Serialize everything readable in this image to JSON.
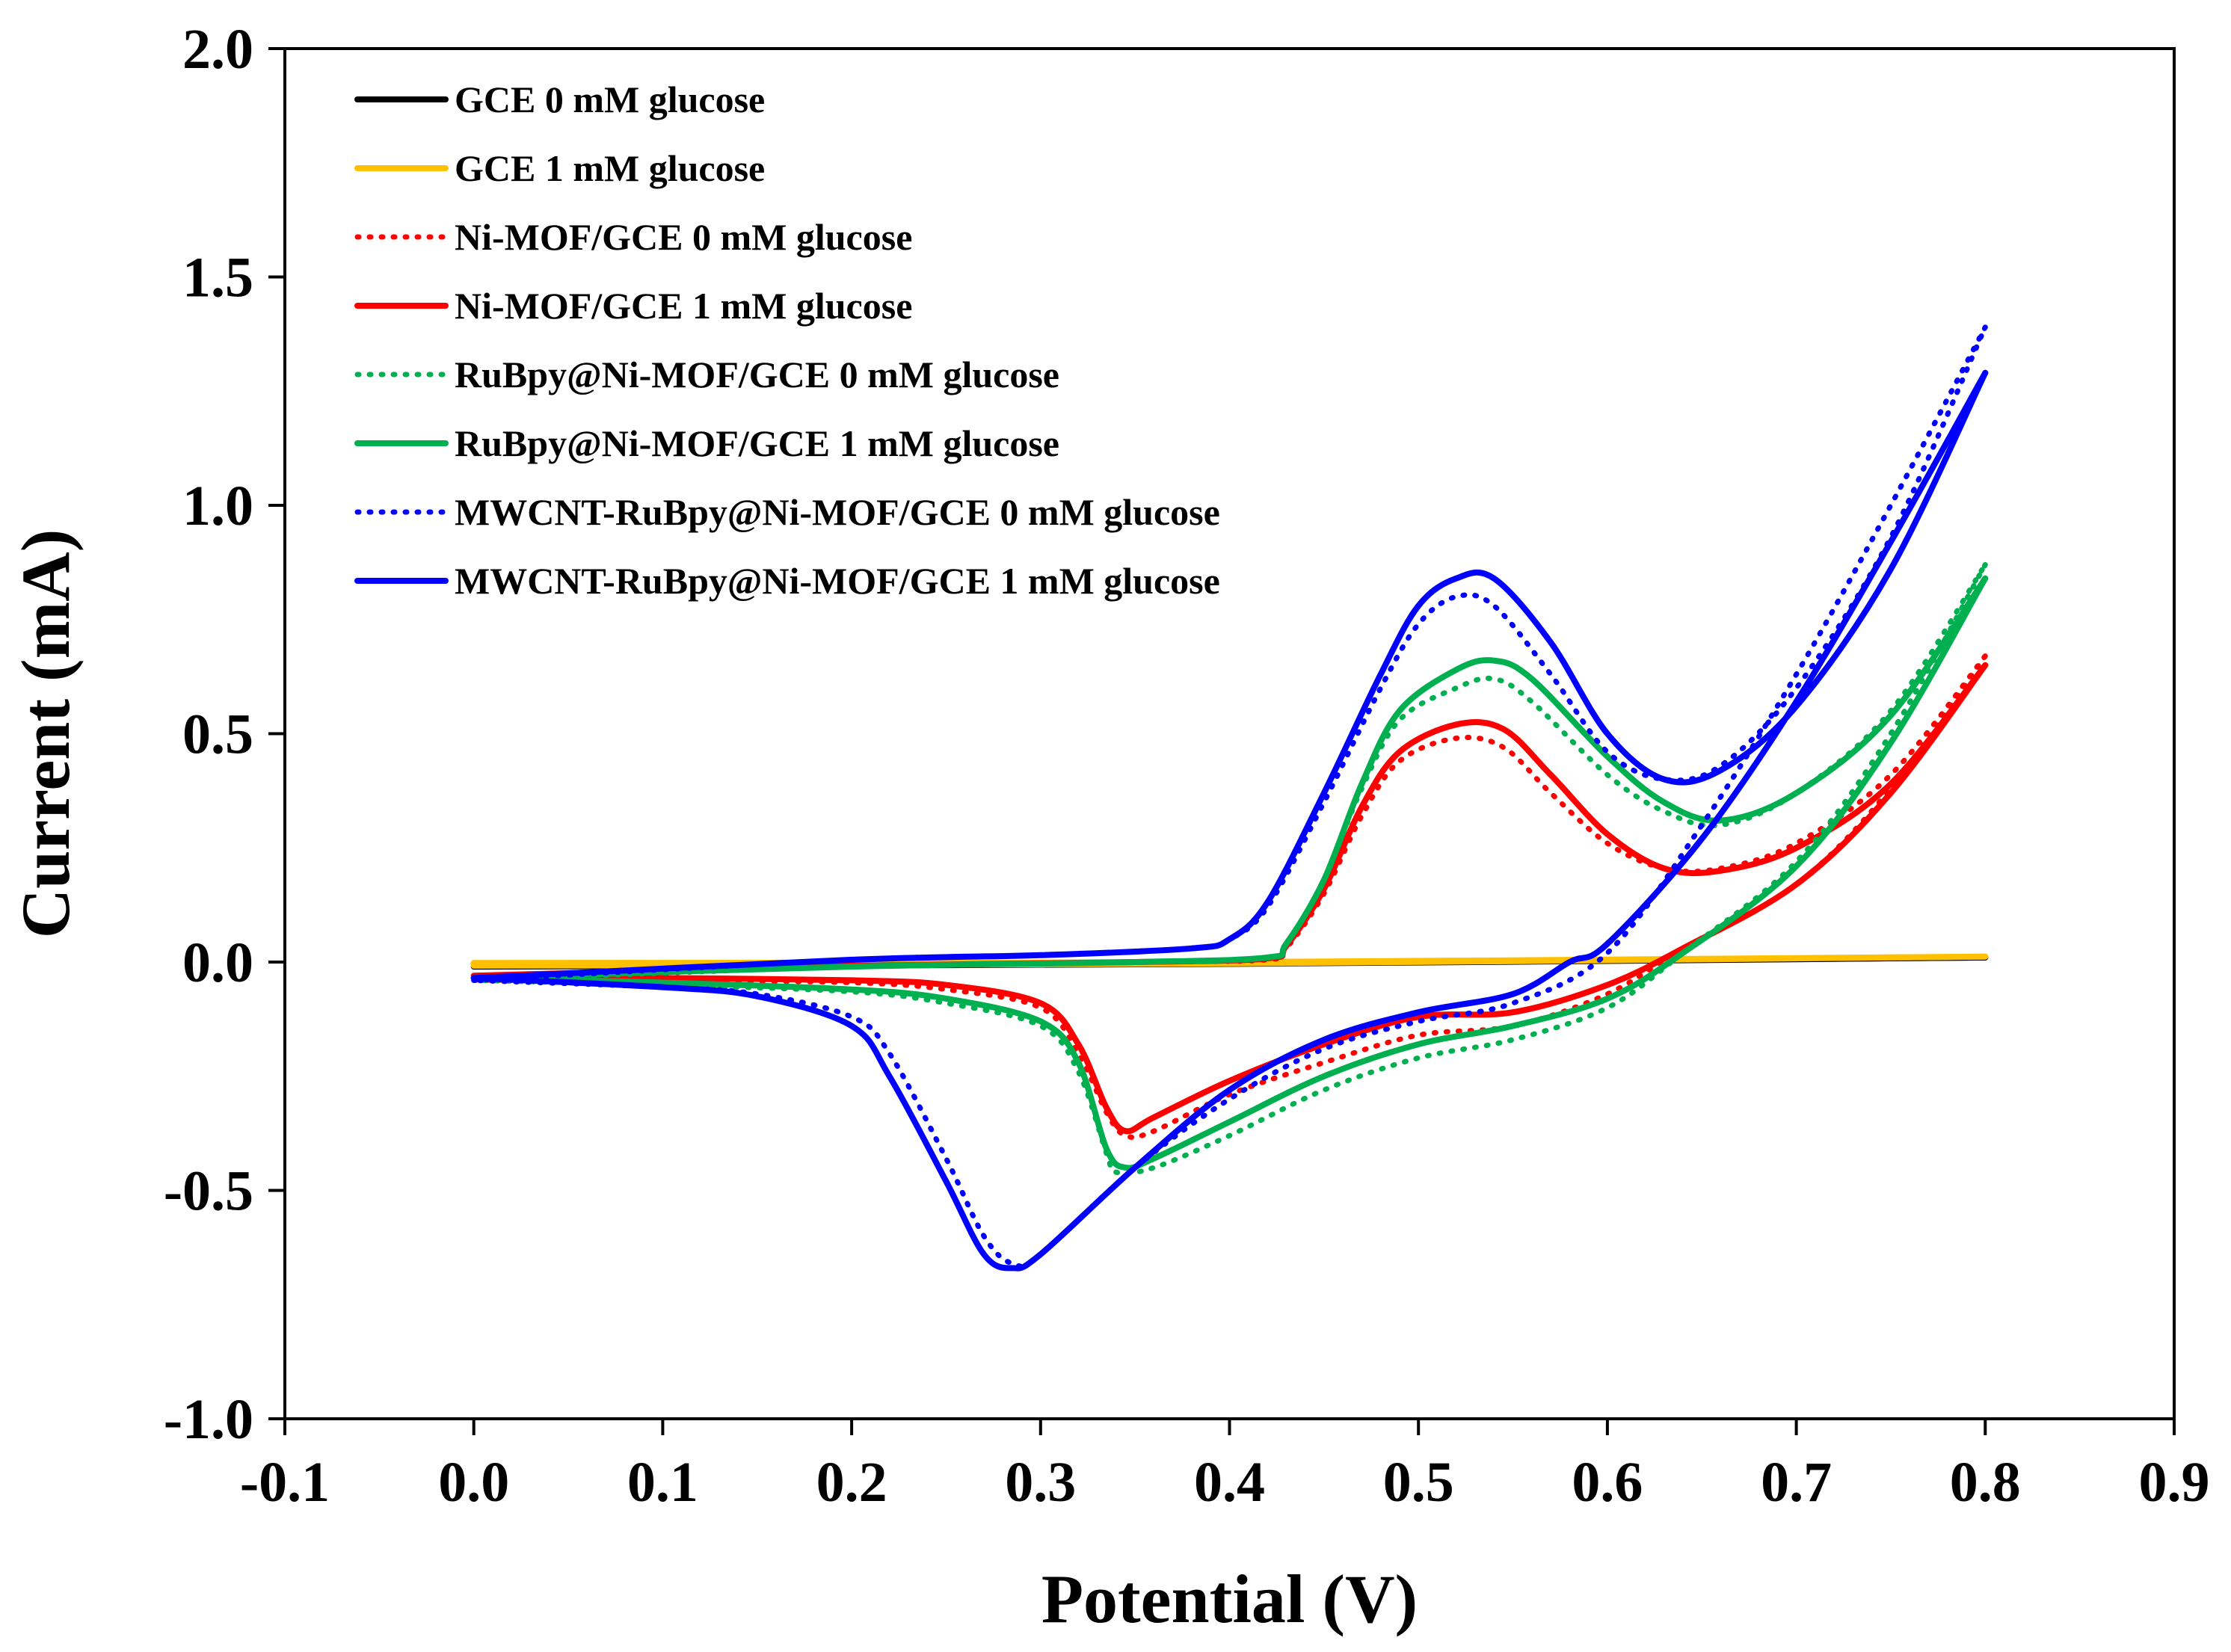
{
  "chart_data": {
    "type": "line",
    "title": "",
    "xlabel": "Potential (V)",
    "ylabel": "Current (mA)",
    "xlim": [
      -0.1,
      0.9
    ],
    "ylim": [
      -1.0,
      2.0
    ],
    "xticks": [
      "-0.1",
      "0.0",
      "0.1",
      "0.2",
      "0.3",
      "0.4",
      "0.5",
      "0.6",
      "0.7",
      "0.8",
      "0.9"
    ],
    "yticks": [
      "-1.0",
      "-0.5",
      "0.0",
      "0.5",
      "1.0",
      "1.5",
      "2.0"
    ],
    "grid": false,
    "legend_position": "top-left",
    "series": [
      {
        "name": "GCE 0 mM glucose",
        "color": "#000000",
        "style": "solid",
        "forward": [
          [
            0.0,
            -0.01
          ],
          [
            0.4,
            -0.004
          ],
          [
            0.8,
            0.01
          ]
        ],
        "reverse": [
          [
            0.8,
            0.01
          ],
          [
            0.4,
            -0.002
          ],
          [
            0.0,
            -0.003
          ]
        ]
      },
      {
        "name": "GCE 1 mM glucose",
        "color": "#ffc000",
        "style": "solid",
        "forward": [
          [
            0.0,
            -0.008
          ],
          [
            0.4,
            -0.003
          ],
          [
            0.8,
            0.012
          ]
        ],
        "reverse": [
          [
            0.8,
            0.012
          ],
          [
            0.4,
            0.0
          ],
          [
            0.0,
            -0.002
          ]
        ]
      },
      {
        "name": "Ni-MOF/GCE 0 mM glucose",
        "color": "#ff0000",
        "style": "dotted",
        "forward": [
          [
            0.0,
            -0.035
          ],
          [
            0.2,
            -0.01
          ],
          [
            0.35,
            0.0
          ],
          [
            0.42,
            0.005
          ],
          [
            0.43,
            0.03
          ],
          [
            0.45,
            0.15
          ],
          [
            0.47,
            0.32
          ],
          [
            0.49,
            0.44
          ],
          [
            0.52,
            0.49
          ],
          [
            0.545,
            0.47
          ],
          [
            0.57,
            0.37
          ],
          [
            0.6,
            0.26
          ],
          [
            0.63,
            0.205
          ],
          [
            0.66,
            0.205
          ],
          [
            0.7,
            0.26
          ],
          [
            0.75,
            0.41
          ],
          [
            0.8,
            0.67
          ]
        ],
        "reverse": [
          [
            0.8,
            0.67
          ],
          [
            0.75,
            0.38
          ],
          [
            0.7,
            0.17
          ],
          [
            0.64,
            0.03
          ],
          [
            0.6,
            -0.07
          ],
          [
            0.55,
            -0.14
          ],
          [
            0.5,
            -0.16
          ],
          [
            0.45,
            -0.22
          ],
          [
            0.4,
            -0.29
          ],
          [
            0.36,
            -0.37
          ],
          [
            0.345,
            -0.38
          ],
          [
            0.335,
            -0.33
          ],
          [
            0.32,
            -0.2
          ],
          [
            0.3,
            -0.1
          ],
          [
            0.25,
            -0.06
          ],
          [
            0.2,
            -0.045
          ],
          [
            0.1,
            -0.04
          ],
          [
            0.0,
            -0.04
          ]
        ]
      },
      {
        "name": "Ni-MOF/GCE 1 mM glucose",
        "color": "#ff0000",
        "style": "solid",
        "forward": [
          [
            0.0,
            -0.03
          ],
          [
            0.2,
            -0.008
          ],
          [
            0.35,
            0.0
          ],
          [
            0.42,
            0.008
          ],
          [
            0.43,
            0.035
          ],
          [
            0.45,
            0.16
          ],
          [
            0.47,
            0.34
          ],
          [
            0.49,
            0.46
          ],
          [
            0.52,
            0.52
          ],
          [
            0.545,
            0.51
          ],
          [
            0.57,
            0.41
          ],
          [
            0.6,
            0.28
          ],
          [
            0.63,
            0.205
          ],
          [
            0.66,
            0.2
          ],
          [
            0.7,
            0.25
          ],
          [
            0.75,
            0.39
          ],
          [
            0.8,
            0.65
          ]
        ],
        "reverse": [
          [
            0.8,
            0.65
          ],
          [
            0.75,
            0.37
          ],
          [
            0.7,
            0.17
          ],
          [
            0.64,
            0.03
          ],
          [
            0.6,
            -0.05
          ],
          [
            0.55,
            -0.11
          ],
          [
            0.5,
            -0.12
          ],
          [
            0.45,
            -0.18
          ],
          [
            0.4,
            -0.26
          ],
          [
            0.36,
            -0.34
          ],
          [
            0.345,
            -0.37
          ],
          [
            0.335,
            -0.32
          ],
          [
            0.32,
            -0.18
          ],
          [
            0.3,
            -0.09
          ],
          [
            0.25,
            -0.05
          ],
          [
            0.2,
            -0.04
          ],
          [
            0.1,
            -0.035
          ],
          [
            0.0,
            -0.035
          ]
        ]
      },
      {
        "name": "RuBpy@Ni-MOF/GCE 0 mM glucose",
        "color": "#00b050",
        "style": "dotted",
        "forward": [
          [
            0.0,
            -0.04
          ],
          [
            0.2,
            -0.01
          ],
          [
            0.35,
            0.0
          ],
          [
            0.42,
            0.01
          ],
          [
            0.43,
            0.04
          ],
          [
            0.45,
            0.18
          ],
          [
            0.47,
            0.38
          ],
          [
            0.49,
            0.53
          ],
          [
            0.52,
            0.6
          ],
          [
            0.54,
            0.62
          ],
          [
            0.56,
            0.57
          ],
          [
            0.6,
            0.41
          ],
          [
            0.63,
            0.33
          ],
          [
            0.66,
            0.3
          ],
          [
            0.7,
            0.37
          ],
          [
            0.75,
            0.55
          ],
          [
            0.8,
            0.87
          ]
        ],
        "reverse": [
          [
            0.8,
            0.87
          ],
          [
            0.75,
            0.5
          ],
          [
            0.7,
            0.22
          ],
          [
            0.64,
            0.02
          ],
          [
            0.6,
            -0.1
          ],
          [
            0.55,
            -0.17
          ],
          [
            0.5,
            -0.21
          ],
          [
            0.45,
            -0.28
          ],
          [
            0.4,
            -0.38
          ],
          [
            0.36,
            -0.45
          ],
          [
            0.34,
            -0.46
          ],
          [
            0.335,
            -0.42
          ],
          [
            0.32,
            -0.24
          ],
          [
            0.3,
            -0.14
          ],
          [
            0.25,
            -0.09
          ],
          [
            0.2,
            -0.065
          ],
          [
            0.1,
            -0.05
          ],
          [
            0.0,
            -0.04
          ]
        ]
      },
      {
        "name": "RuBpy@Ni-MOF/GCE 1 mM glucose",
        "color": "#00b050",
        "style": "solid",
        "forward": [
          [
            0.0,
            -0.035
          ],
          [
            0.2,
            -0.01
          ],
          [
            0.35,
            0.0
          ],
          [
            0.42,
            0.01
          ],
          [
            0.43,
            0.04
          ],
          [
            0.45,
            0.18
          ],
          [
            0.47,
            0.39
          ],
          [
            0.49,
            0.55
          ],
          [
            0.52,
            0.64
          ],
          [
            0.54,
            0.66
          ],
          [
            0.56,
            0.62
          ],
          [
            0.6,
            0.45
          ],
          [
            0.63,
            0.35
          ],
          [
            0.66,
            0.31
          ],
          [
            0.7,
            0.37
          ],
          [
            0.75,
            0.54
          ],
          [
            0.8,
            0.84
          ]
        ],
        "reverse": [
          [
            0.8,
            0.84
          ],
          [
            0.75,
            0.48
          ],
          [
            0.7,
            0.21
          ],
          [
            0.64,
            0.02
          ],
          [
            0.6,
            -0.08
          ],
          [
            0.55,
            -0.14
          ],
          [
            0.5,
            -0.18
          ],
          [
            0.45,
            -0.25
          ],
          [
            0.4,
            -0.35
          ],
          [
            0.36,
            -0.43
          ],
          [
            0.345,
            -0.45
          ],
          [
            0.335,
            -0.41
          ],
          [
            0.32,
            -0.22
          ],
          [
            0.3,
            -0.13
          ],
          [
            0.25,
            -0.08
          ],
          [
            0.2,
            -0.06
          ],
          [
            0.1,
            -0.045
          ],
          [
            0.0,
            -0.035
          ]
        ]
      },
      {
        "name": "MWCNT-RuBpy@Ni-MOF/GCE 0 mM glucose",
        "color": "#0000ff",
        "style": "dotted",
        "forward": [
          [
            0.0,
            -0.04
          ],
          [
            0.2,
            0.005
          ],
          [
            0.3,
            0.015
          ],
          [
            0.38,
            0.03
          ],
          [
            0.4,
            0.05
          ],
          [
            0.42,
            0.12
          ],
          [
            0.45,
            0.35
          ],
          [
            0.48,
            0.6
          ],
          [
            0.5,
            0.74
          ],
          [
            0.52,
            0.8
          ],
          [
            0.54,
            0.78
          ],
          [
            0.57,
            0.63
          ],
          [
            0.6,
            0.46
          ],
          [
            0.63,
            0.4
          ],
          [
            0.66,
            0.43
          ],
          [
            0.7,
            0.6
          ],
          [
            0.75,
            0.93
          ],
          [
            0.8,
            1.39
          ]
        ],
        "reverse": [
          [
            0.8,
            1.39
          ],
          [
            0.75,
            1.0
          ],
          [
            0.7,
            0.63
          ],
          [
            0.65,
            0.3
          ],
          [
            0.6,
            0.02
          ],
          [
            0.55,
            -0.09
          ],
          [
            0.5,
            -0.13
          ],
          [
            0.45,
            -0.19
          ],
          [
            0.4,
            -0.3
          ],
          [
            0.35,
            -0.45
          ],
          [
            0.3,
            -0.64
          ],
          [
            0.285,
            -0.66
          ],
          [
            0.27,
            -0.6
          ],
          [
            0.25,
            -0.43
          ],
          [
            0.22,
            -0.2
          ],
          [
            0.2,
            -0.12
          ],
          [
            0.15,
            -0.07
          ],
          [
            0.1,
            -0.055
          ],
          [
            0.0,
            -0.04
          ]
        ]
      },
      {
        "name": "MWCNT-RuBpy@Ni-MOF/GCE 1 mM glucose",
        "color": "#0000ff",
        "style": "solid",
        "forward": [
          [
            0.0,
            -0.035
          ],
          [
            0.2,
            0.005
          ],
          [
            0.3,
            0.015
          ],
          [
            0.38,
            0.03
          ],
          [
            0.4,
            0.05
          ],
          [
            0.42,
            0.13
          ],
          [
            0.45,
            0.37
          ],
          [
            0.48,
            0.63
          ],
          [
            0.5,
            0.78
          ],
          [
            0.52,
            0.84
          ],
          [
            0.54,
            0.84
          ],
          [
            0.57,
            0.7
          ],
          [
            0.6,
            0.5
          ],
          [
            0.63,
            0.4
          ],
          [
            0.66,
            0.42
          ],
          [
            0.7,
            0.56
          ],
          [
            0.75,
            0.86
          ],
          [
            0.8,
            1.29
          ]
        ],
        "reverse": [
          [
            0.8,
            1.29
          ],
          [
            0.75,
            0.92
          ],
          [
            0.7,
            0.57
          ],
          [
            0.65,
            0.27
          ],
          [
            0.6,
            0.04
          ],
          [
            0.58,
            0.0
          ],
          [
            0.55,
            -0.07
          ],
          [
            0.5,
            -0.11
          ],
          [
            0.45,
            -0.17
          ],
          [
            0.4,
            -0.28
          ],
          [
            0.35,
            -0.45
          ],
          [
            0.3,
            -0.64
          ],
          [
            0.285,
            -0.67
          ],
          [
            0.27,
            -0.64
          ],
          [
            0.25,
            -0.48
          ],
          [
            0.22,
            -0.25
          ],
          [
            0.2,
            -0.14
          ],
          [
            0.15,
            -0.075
          ],
          [
            0.1,
            -0.055
          ],
          [
            0.0,
            -0.035
          ]
        ]
      }
    ]
  }
}
